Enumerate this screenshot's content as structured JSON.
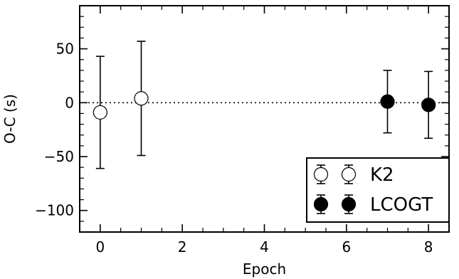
{
  "chart_data": {
    "type": "scatter",
    "xlabel": "Epoch",
    "ylabel": "O-C (s)",
    "xlim": [
      -0.5,
      8.5
    ],
    "ylim": [
      -120,
      90
    ],
    "xticks": [
      0,
      2,
      4,
      6,
      8
    ],
    "xtick_labels": [
      "0",
      "2",
      "4",
      "6",
      "8"
    ],
    "yticks": [
      50,
      0,
      -50,
      -100
    ],
    "ytick_labels": [
      "50",
      "0",
      "−50",
      "−100"
    ],
    "reference_line_y": 0,
    "legend_position": "lower-right",
    "series": [
      {
        "name": "K2",
        "marker": "open-circle",
        "color": "#000000",
        "points": [
          {
            "x": 0,
            "y": -9,
            "err": 52
          },
          {
            "x": 1,
            "y": 4,
            "err": 53
          }
        ]
      },
      {
        "name": "LCOGT",
        "marker": "filled-circle",
        "color": "#000000",
        "points": [
          {
            "x": 7,
            "y": 1,
            "err": 29
          },
          {
            "x": 8,
            "y": -2,
            "err": 31
          }
        ]
      }
    ]
  }
}
